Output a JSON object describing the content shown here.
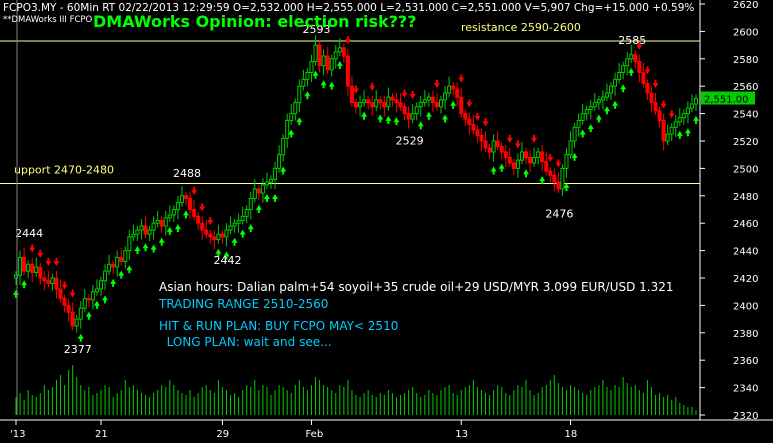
{
  "header": {
    "ticker_line": "FCPO3.MY - 60Min RT   02/22/2013 12:29:59  O=2,532.000   H=2,555.000   L=2,531.000   C=2,551.000   V=5,907   Chg=+15.000   +0.59%",
    "indicator_line": "**DMAWorks III FCPO",
    "opinion_title": "DMAWorks Opinion: election risk???"
  },
  "annotations": {
    "commentary": [
      "Asian hours: Dalian palm+54 soyoil+35 crude oil+29 USD/MYR 3.099 EUR/USD 1.321",
      "TRADING RANGE 2510-2560",
      "HIT & RUN PLAN: BUY FCPO MAY< 2510",
      "  LONG PLAN: wait and see..."
    ],
    "levels": [
      {
        "label": "resistance 2590-2600",
        "value": 2593
      },
      {
        "label": "upport 2470-2480",
        "value": 2489
      }
    ],
    "price_labels": [
      {
        "text": "2444",
        "bar": 3,
        "value": 2444
      },
      {
        "text": "2377",
        "bar": 15,
        "value": 2377
      },
      {
        "text": "2488",
        "bar": 42,
        "value": 2488
      },
      {
        "text": "2442",
        "bar": 52,
        "value": 2442
      },
      {
        "text": "2593",
        "bar": 74,
        "value": 2593
      },
      {
        "text": "2529",
        "bar": 97,
        "value": 2529
      },
      {
        "text": "2476",
        "bar": 134,
        "value": 2476
      },
      {
        "text": "2585",
        "bar": 152,
        "value": 2585
      }
    ],
    "last_price": "2,551.00"
  },
  "colors": {
    "background": "#000000",
    "up_candle": "#00cc00",
    "down_candle": "#ff0000",
    "buy_arrow": "#00ff00",
    "sell_arrow": "#ff0000",
    "level_line": "#ffff80",
    "title_green": "#00ff00",
    "commentary_white": "#ffffff",
    "commentary_cyan": "#00ccff",
    "volume": "#00cc00",
    "price_tag": "#00cc00"
  },
  "chart_data": {
    "type": "candlestick",
    "y_axis": {
      "min": 2320,
      "max": 2620,
      "ticks": [
        2320,
        2340,
        2360,
        2380,
        2400,
        2420,
        2440,
        2460,
        2480,
        2500,
        2520,
        2540,
        2560,
        2580,
        2600,
        2620
      ]
    },
    "x_ticks": [
      {
        "label": "'13",
        "bar": 0
      },
      {
        "label": "21",
        "bar": 21
      },
      {
        "label": "29",
        "bar": 51
      },
      {
        "label": "Feb",
        "bar": 73
      },
      {
        "label": "13",
        "bar": 110
      },
      {
        "label": "18",
        "bar": 137
      }
    ],
    "closes": [
      2422,
      2435,
      2425,
      2430,
      2424,
      2428,
      2420,
      2418,
      2416,
      2420,
      2412,
      2405,
      2400,
      2395,
      2385,
      2390,
      2398,
      2405,
      2404,
      2410,
      2412,
      2418,
      2425,
      2430,
      2428,
      2435,
      2432,
      2440,
      2450,
      2452,
      2455,
      2458,
      2452,
      2455,
      2460,
      2462,
      2458,
      2464,
      2466,
      2470,
      2475,
      2480,
      2478,
      2470,
      2465,
      2460,
      2455,
      2452,
      2450,
      2448,
      2452,
      2450,
      2455,
      2458,
      2460,
      2462,
      2465,
      2470,
      2478,
      2485,
      2482,
      2488,
      2490,
      2492,
      2500,
      2510,
      2522,
      2535,
      2540,
      2548,
      2560,
      2565,
      2570,
      2578,
      2590,
      2575,
      2582,
      2572,
      2580,
      2585,
      2588,
      2582,
      2560,
      2548,
      2545,
      2548,
      2550,
      2548,
      2545,
      2550,
      2548,
      2545,
      2552,
      2550,
      2548,
      2545,
      2540,
      2536,
      2540,
      2545,
      2548,
      2550,
      2552,
      2548,
      2545,
      2550,
      2555,
      2560,
      2558,
      2552,
      2540,
      2536,
      2532,
      2528,
      2524,
      2520,
      2515,
      2512,
      2520,
      2516,
      2512,
      2508,
      2504,
      2500,
      2506,
      2512,
      2508,
      2504,
      2508,
      2512,
      2505,
      2498,
      2495,
      2490,
      2485,
      2500,
      2510,
      2520,
      2530,
      2535,
      2540,
      2543,
      2545,
      2548,
      2550,
      2552,
      2555,
      2560,
      2565,
      2570,
      2575,
      2580,
      2583,
      2578,
      2570,
      2562,
      2555,
      2548,
      2542,
      2535,
      2520,
      2525,
      2530,
      2534,
      2537,
      2540,
      2544,
      2547,
      2551
    ],
    "volume": [
      18,
      22,
      15,
      25,
      20,
      18,
      22,
      30,
      25,
      28,
      35,
      40,
      30,
      45,
      50,
      38,
      30,
      25,
      28,
      20,
      22,
      25,
      30,
      28,
      18,
      22,
      25,
      35,
      28,
      30,
      25,
      22,
      20,
      18,
      22,
      25,
      30,
      28,
      35,
      30,
      25,
      22,
      20,
      25,
      18,
      22,
      28,
      30,
      25,
      22,
      35,
      28,
      25,
      20,
      22,
      18,
      25,
      30,
      28,
      35,
      25,
      30,
      28,
      20,
      25,
      30,
      28,
      25,
      22,
      30,
      35,
      28,
      25,
      30,
      38,
      35,
      30,
      28,
      25,
      22,
      30,
      28,
      35,
      25,
      20,
      18,
      22,
      25,
      20,
      18,
      22,
      20,
      25,
      22,
      18,
      20,
      22,
      25,
      28,
      22,
      18,
      20,
      25,
      22,
      20,
      25,
      28,
      30,
      22,
      20,
      25,
      28,
      30,
      35,
      28,
      25,
      22,
      20,
      25,
      30,
      28,
      22,
      20,
      25,
      30,
      28,
      35,
      25,
      20,
      22,
      28,
      30,
      35,
      40,
      32,
      28,
      25,
      30,
      28,
      25,
      22,
      20,
      25,
      28,
      30,
      35,
      28,
      25,
      30,
      28,
      38,
      32,
      28,
      30,
      25,
      22,
      35,
      28,
      20,
      22,
      18,
      20,
      15,
      18,
      12,
      10,
      8,
      8,
      5
    ]
  }
}
